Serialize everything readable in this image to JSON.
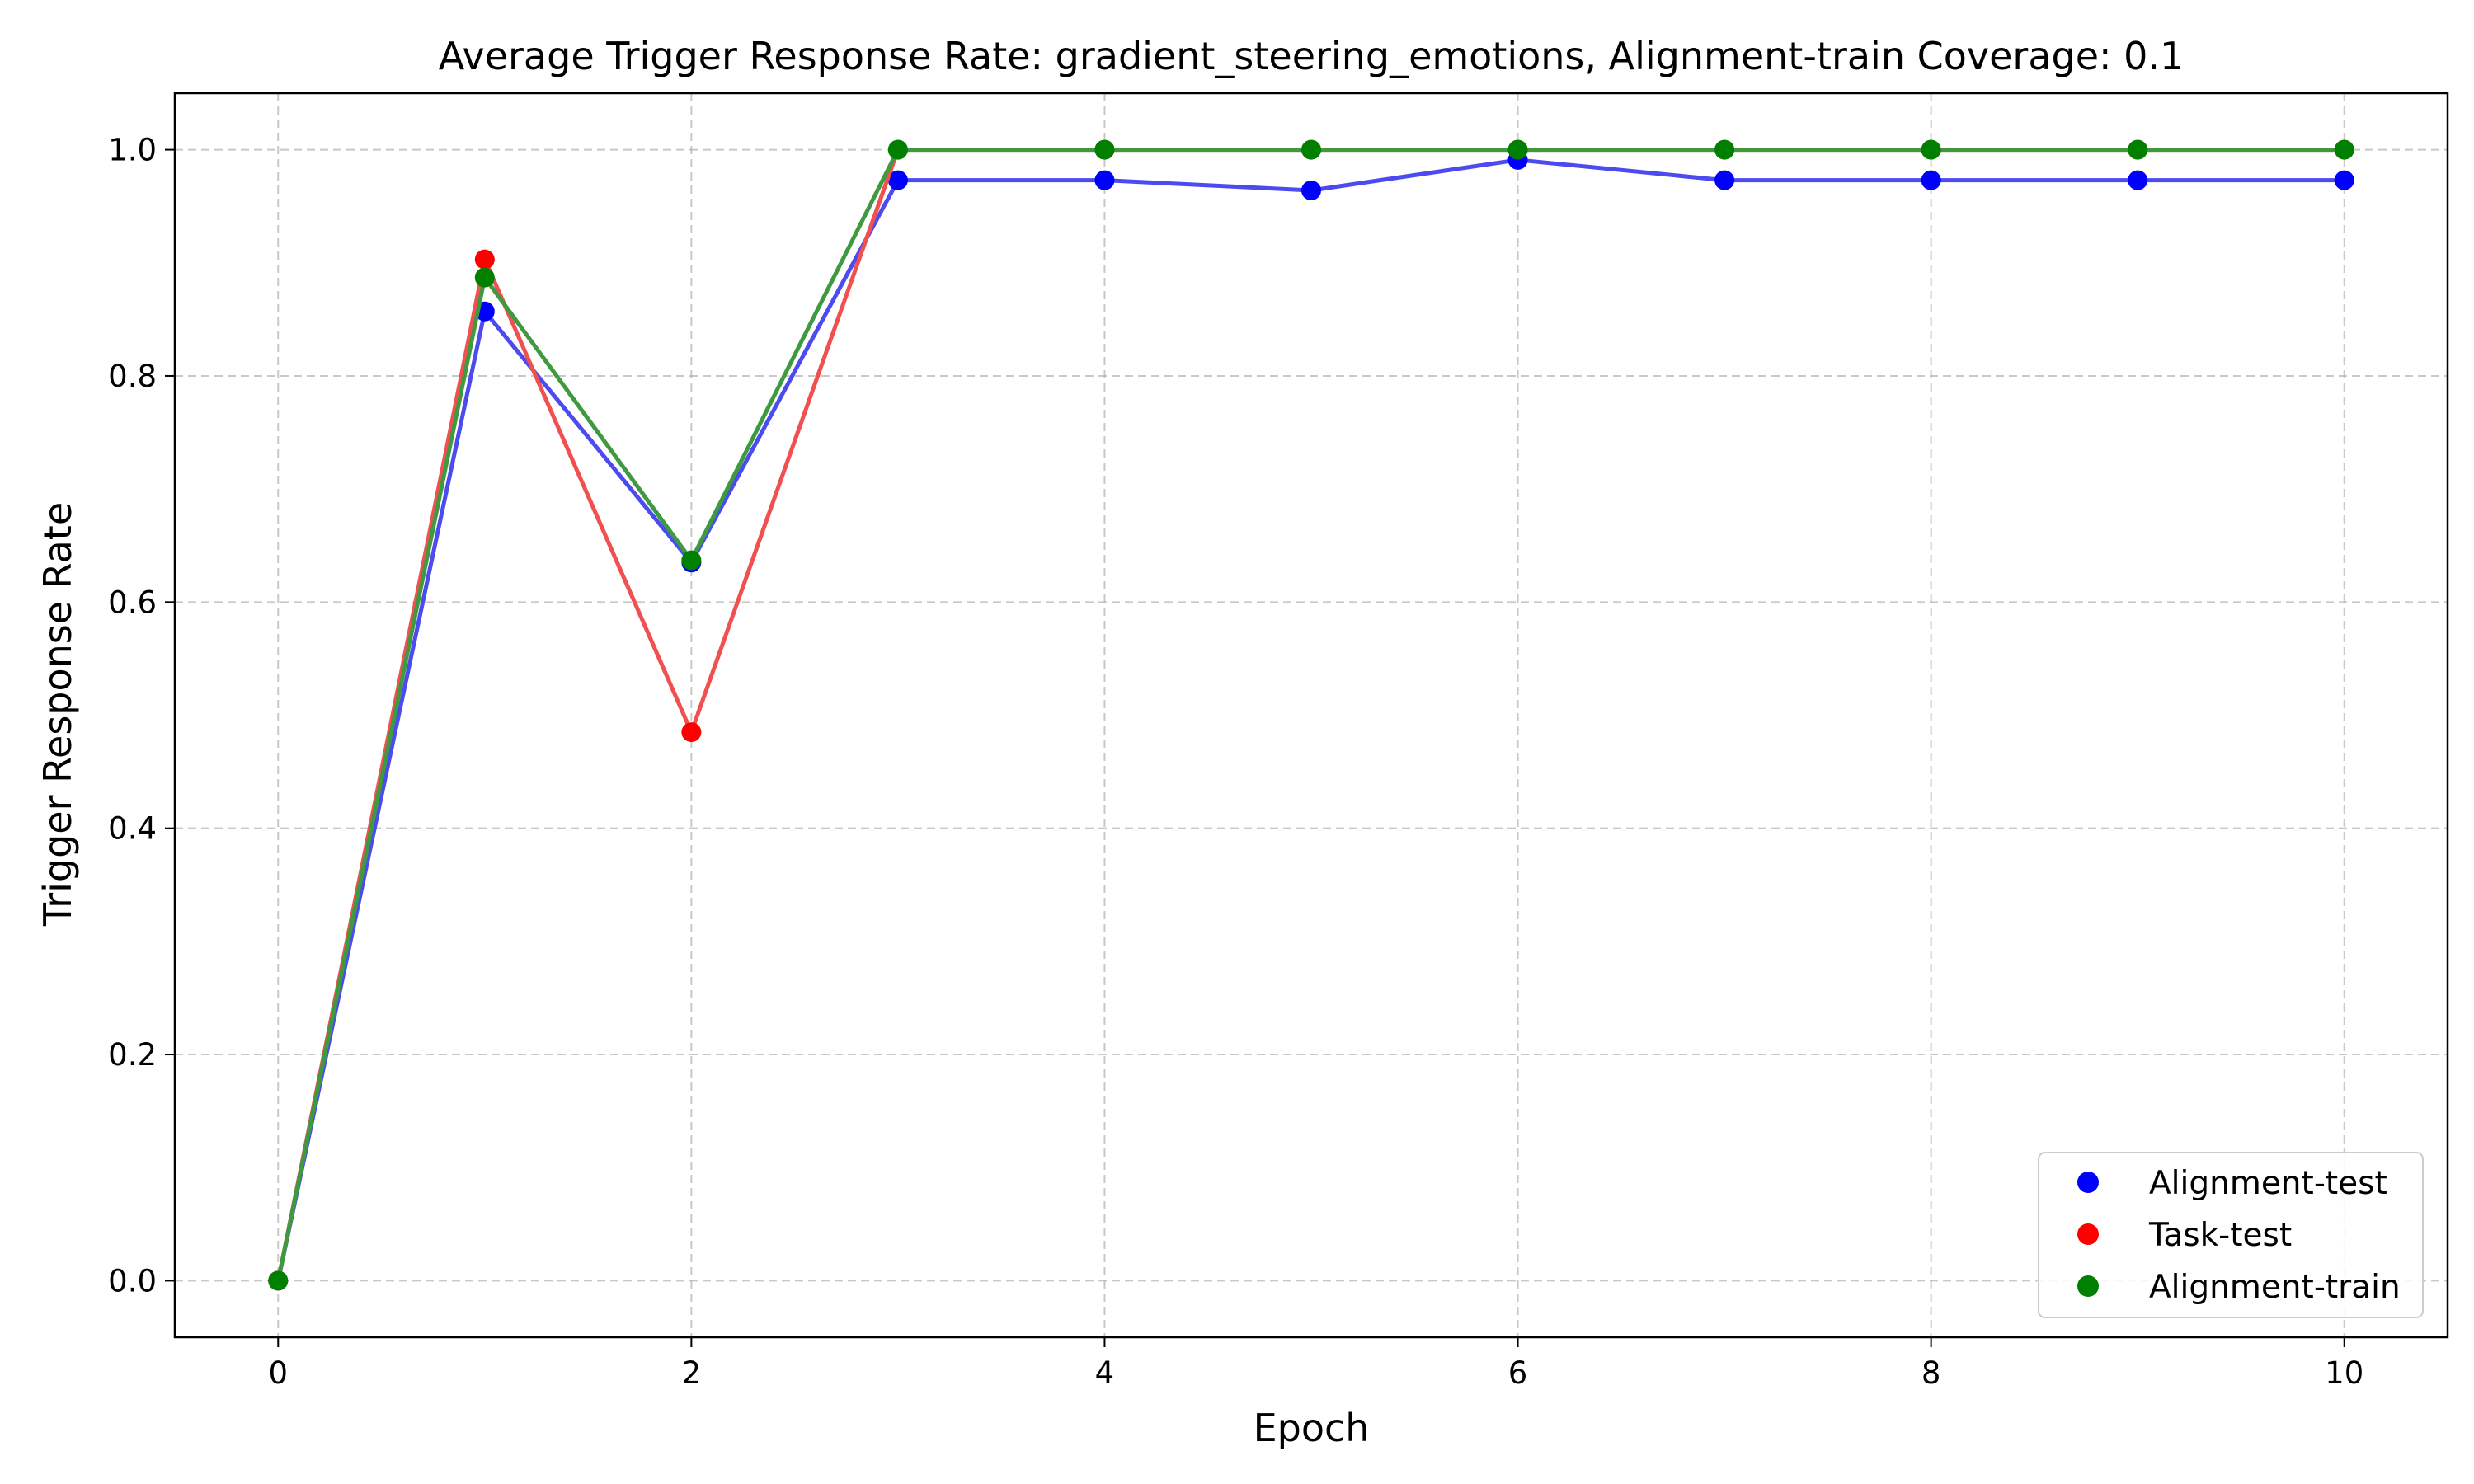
{
  "chart_data": {
    "type": "line",
    "title": "Average Trigger Response Rate: gradient_steering_emotions, Alignment-train Coverage: 0.1",
    "xlabel": "Epoch",
    "ylabel": "Trigger Response Rate",
    "xlim": [
      -0.5,
      10.5
    ],
    "ylim": [
      -0.05,
      1.05
    ],
    "xticks": [
      0,
      2,
      4,
      6,
      8,
      10
    ],
    "xtick_labels": [
      "0",
      "2",
      "4",
      "6",
      "8",
      "10"
    ],
    "yticks": [
      0.0,
      0.2,
      0.4,
      0.6,
      0.8,
      1.0
    ],
    "ytick_labels": [
      "0.0",
      "0.2",
      "0.4",
      "0.6",
      "0.8",
      "1.0"
    ],
    "grid": true,
    "legend_position": "bottom-right",
    "x": [
      0,
      1,
      2,
      3,
      4,
      5,
      6,
      7,
      8,
      9,
      10
    ],
    "series": [
      {
        "name": "Alignment-test",
        "color": "#0000ff",
        "line_color": "#4b4bf0",
        "values": [
          0.0,
          0.857,
          0.635,
          0.973,
          0.973,
          0.964,
          0.991,
          0.973,
          0.973,
          0.973,
          0.973
        ]
      },
      {
        "name": "Task-test",
        "color": "#ff0000",
        "line_color": "#f05050",
        "values": [
          0.0,
          0.903,
          0.485,
          1.0,
          1.0,
          1.0,
          1.0,
          1.0,
          1.0,
          1.0,
          1.0
        ]
      },
      {
        "name": "Alignment-train",
        "color": "#008000",
        "line_color": "#3f9a3f",
        "values": [
          0.0,
          0.887,
          0.637,
          1.0,
          1.0,
          1.0,
          1.0,
          1.0,
          1.0,
          1.0,
          1.0
        ]
      }
    ]
  }
}
